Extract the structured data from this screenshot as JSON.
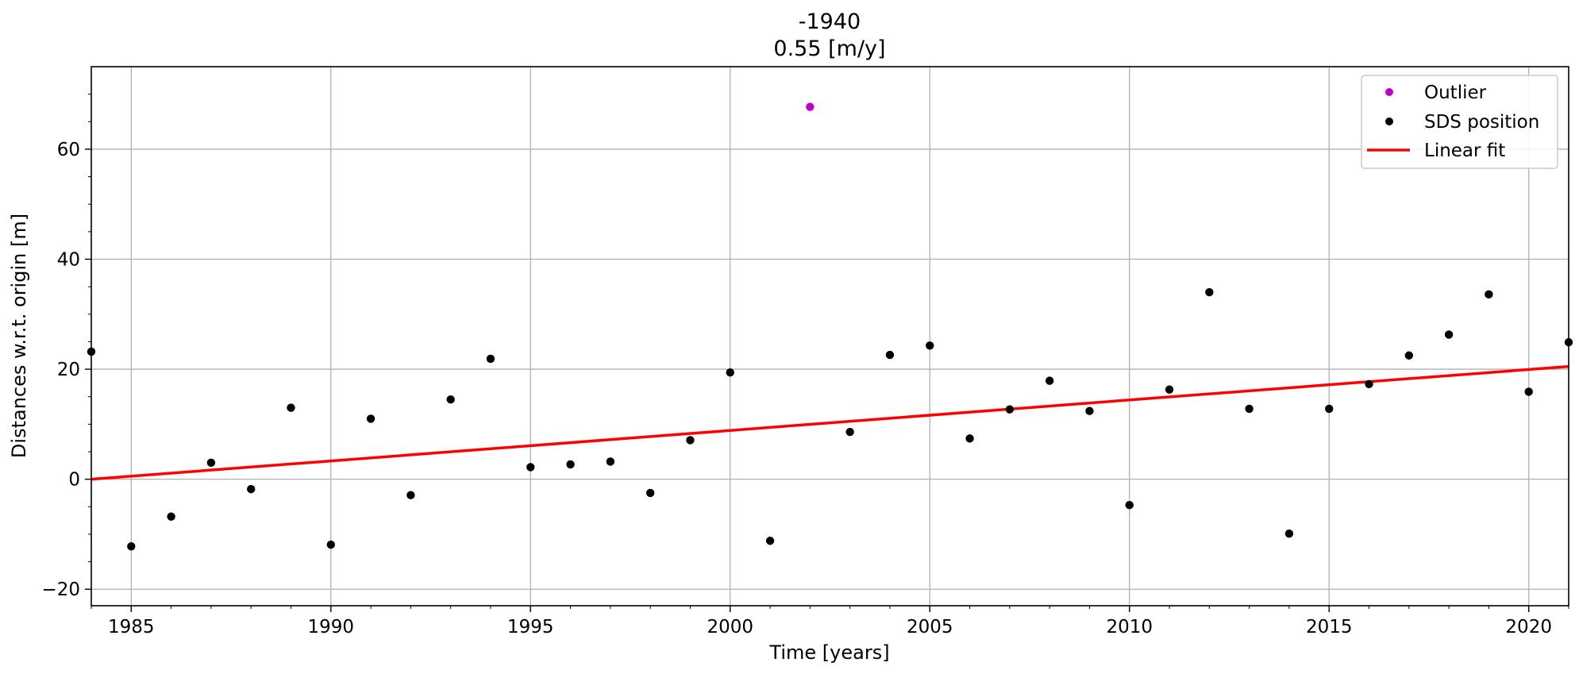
{
  "chart_data": {
    "type": "scatter",
    "title_lines": [
      "-1940",
      "0.55 [m/y]"
    ],
    "xlabel": "Time [years]",
    "ylabel": "Distances w.r.t. origin [m]",
    "xlim": [
      1984,
      2021
    ],
    "ylim": [
      -23,
      75
    ],
    "xticks": [
      1985,
      1990,
      1995,
      2000,
      2005,
      2010,
      2015,
      2020
    ],
    "xtick_labels": [
      "1985",
      "1990",
      "1995",
      "2000",
      "2005",
      "2010",
      "2015",
      "2020"
    ],
    "yticks": [
      -20,
      0,
      20,
      40,
      60
    ],
    "ytick_labels": [
      "−20",
      "0",
      "20",
      "40",
      "60"
    ],
    "grid": true,
    "legend_position": "top-right",
    "legend": {
      "outlier": "Outlier",
      "sds": "SDS position",
      "fit": "Linear fit"
    },
    "colors": {
      "outlier": "#bf00bf",
      "sds": "#000000",
      "fit": "#ff0000",
      "grid": "#b0b0b0"
    },
    "series": [
      {
        "name": "SDS position",
        "x": [
          1984,
          1985,
          1986,
          1987,
          1988,
          1989,
          1990,
          1991,
          1992,
          1993,
          1994,
          1995,
          1996,
          1997,
          1998,
          1999,
          2000,
          2001,
          2003,
          2004,
          2005,
          2006,
          2007,
          2008,
          2009,
          2010,
          2011,
          2012,
          2013,
          2014,
          2015,
          2016,
          2017,
          2018,
          2019,
          2020,
          2021
        ],
        "y": [
          23.2,
          -12.2,
          -6.8,
          3.0,
          -1.8,
          13.0,
          -11.9,
          11.0,
          -2.9,
          14.5,
          21.9,
          2.2,
          2.7,
          3.2,
          -2.5,
          7.1,
          19.4,
          -11.2,
          8.6,
          22.6,
          24.3,
          7.4,
          12.7,
          17.9,
          12.4,
          -4.7,
          16.3,
          34.0,
          12.8,
          -9.9,
          12.8,
          17.3,
          22.5,
          26.3,
          33.6,
          15.9,
          24.9
        ]
      },
      {
        "name": "Outlier",
        "x": [
          2002
        ],
        "y": [
          67.7
        ]
      },
      {
        "name": "Linear fit",
        "x": [
          1984,
          2021
        ],
        "y": [
          0.0,
          20.5
        ]
      }
    ]
  }
}
